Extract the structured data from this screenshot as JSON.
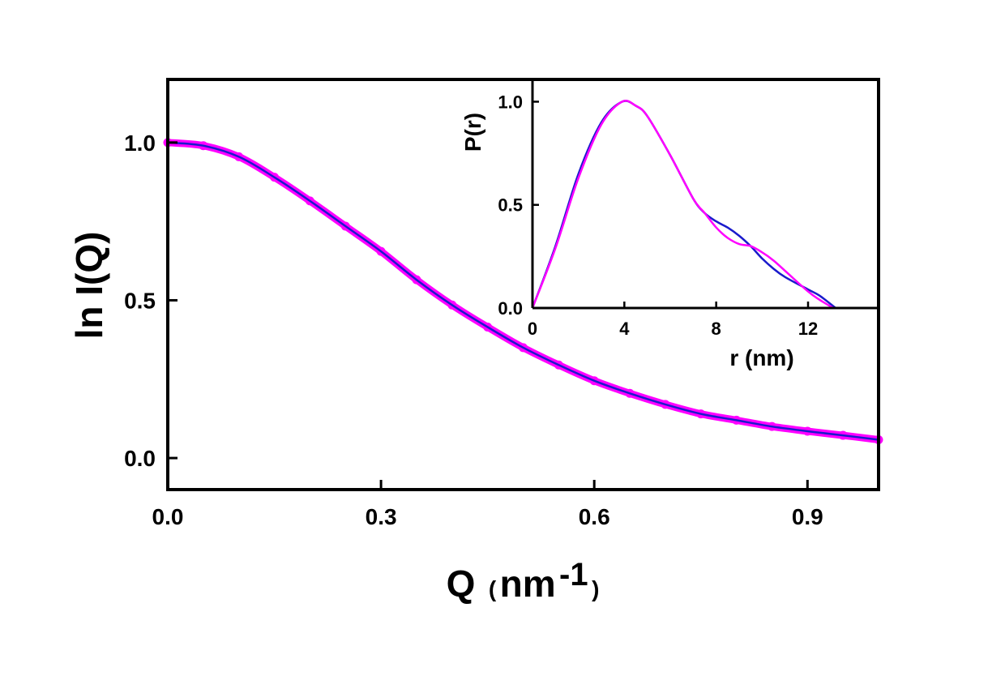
{
  "colors": {
    "data_series": "#ff00ff",
    "fit_series": "#1a1acc",
    "axis": "#000000",
    "background": "#ffffff"
  },
  "chart_data": [
    {
      "type": "scatter",
      "xlabel": "Q",
      "xlabel_unit_base": "nm",
      "xlabel_unit_exp": "-1",
      "ylabel": "ln I(Q)",
      "xlim": [
        0.0,
        1.0
      ],
      "ylim": [
        -0.1,
        1.2
      ],
      "xticks": [
        0.0,
        0.3,
        0.6,
        0.9
      ],
      "xtick_labels": [
        "0.0",
        "0.3",
        "0.6",
        "0.9"
      ],
      "yticks": [
        0.0,
        0.5,
        1.0
      ],
      "ytick_labels": [
        "0.0",
        "0.5",
        "1.0"
      ],
      "grid": false,
      "series": [
        {
          "style": "scatter",
          "color": "#ff00ff",
          "x": [
            0.0,
            0.05,
            0.1,
            0.15,
            0.2,
            0.25,
            0.3,
            0.35,
            0.4,
            0.45,
            0.5,
            0.55,
            0.6,
            0.65,
            0.7,
            0.75,
            0.8,
            0.85,
            0.9,
            0.95,
            1.0
          ],
          "y": [
            1.0,
            0.99,
            0.955,
            0.89,
            0.815,
            0.735,
            0.655,
            0.565,
            0.485,
            0.415,
            0.35,
            0.295,
            0.245,
            0.205,
            0.17,
            0.14,
            0.12,
            0.1,
            0.085,
            0.072,
            0.058
          ]
        },
        {
          "style": "line",
          "color": "#1a1acc",
          "x": [
            0.0,
            0.05,
            0.1,
            0.15,
            0.2,
            0.25,
            0.3,
            0.35,
            0.4,
            0.45,
            0.5,
            0.55,
            0.6,
            0.65,
            0.7,
            0.75,
            0.8,
            0.85,
            0.9,
            0.95,
            1.0
          ],
          "y": [
            1.0,
            0.99,
            0.955,
            0.89,
            0.815,
            0.735,
            0.655,
            0.565,
            0.485,
            0.415,
            0.35,
            0.295,
            0.245,
            0.205,
            0.17,
            0.14,
            0.12,
            0.1,
            0.085,
            0.072,
            0.058
          ]
        }
      ]
    },
    {
      "type": "line",
      "xlabel": "r (nm)",
      "ylabel": "P(r)",
      "xlim": [
        0,
        15
      ],
      "ylim": [
        0,
        1.1
      ],
      "xticks": [
        0,
        4,
        8,
        12
      ],
      "xtick_labels": [
        "0",
        "4",
        "8",
        "12"
      ],
      "yticks": [
        0.0,
        0.5,
        1.0
      ],
      "ytick_labels": [
        "0.0",
        "0.5",
        "1.0"
      ],
      "grid": false,
      "series": [
        {
          "color": "#1a1acc",
          "x": [
            0,
            1,
            2,
            3,
            3.9,
            4.5,
            5,
            6,
            7,
            7.5,
            8,
            8.5,
            9,
            9.5,
            10,
            10.5,
            11,
            12,
            12.5,
            13.2
          ],
          "y": [
            0.0,
            0.3,
            0.65,
            0.9,
            1.0,
            0.98,
            0.93,
            0.74,
            0.53,
            0.46,
            0.42,
            0.39,
            0.35,
            0.3,
            0.24,
            0.19,
            0.15,
            0.09,
            0.06,
            0.0
          ]
        },
        {
          "color": "#ff00ff",
          "x": [
            0,
            1,
            2,
            3,
            3.9,
            4.5,
            5,
            6,
            7,
            7.5,
            8,
            8.5,
            9,
            9.5,
            10,
            10.5,
            11,
            12,
            12.5,
            13.1
          ],
          "y": [
            0.0,
            0.29,
            0.63,
            0.89,
            1.0,
            0.98,
            0.93,
            0.74,
            0.53,
            0.46,
            0.39,
            0.34,
            0.31,
            0.3,
            0.27,
            0.23,
            0.18,
            0.08,
            0.04,
            0.0
          ]
        }
      ]
    }
  ]
}
